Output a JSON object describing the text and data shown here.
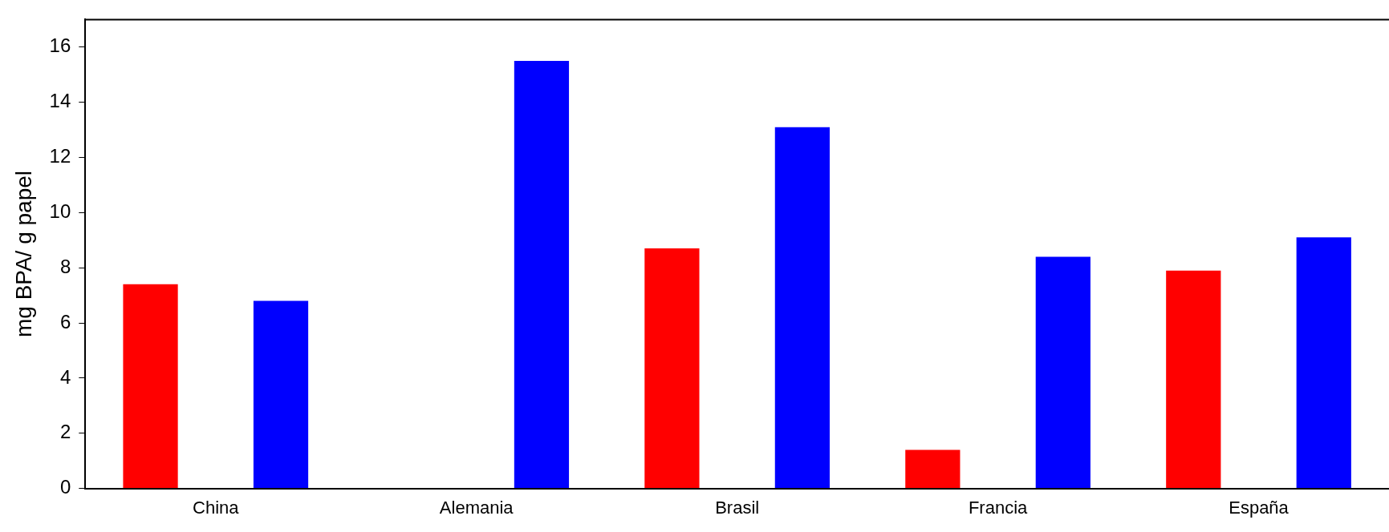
{
  "chart_data": {
    "type": "bar",
    "ylabel": "mg BPA/ g papel",
    "categories": [
      "China",
      "Alemania",
      "Brasil",
      "Francia",
      "España"
    ],
    "series": [
      {
        "color": "#ff0000",
        "values": [
          7.4,
          null,
          8.7,
          1.4,
          7.9
        ]
      },
      {
        "color": "#0000ff",
        "values": [
          6.8,
          15.5,
          13.1,
          8.4,
          9.1
        ]
      }
    ],
    "ylim": [
      0,
      17
    ],
    "yticks": [
      0,
      2,
      4,
      6,
      8,
      10,
      12,
      14,
      16
    ],
    "grid": false,
    "legend": false
  }
}
